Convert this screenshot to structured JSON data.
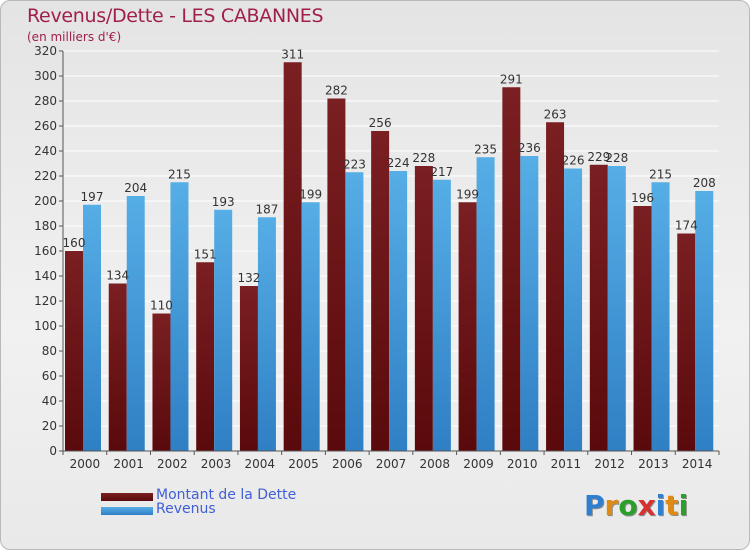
{
  "header": {
    "title": "Revenus/Dette - LES CABANNES",
    "subtitle": "(en milliers d'€)"
  },
  "legend": {
    "debt_label": "Montant de la Dette",
    "revenue_label": "Revenus"
  },
  "logo": {
    "text": "Proxiti",
    "letters": [
      {
        "ch": "P",
        "color": "#2f7fd0"
      },
      {
        "ch": "r",
        "color": "#e08a16"
      },
      {
        "ch": "o",
        "color": "#2a9f2a"
      },
      {
        "ch": "x",
        "color": "#d63030"
      },
      {
        "ch": "i",
        "color": "#2f7fd0"
      },
      {
        "ch": "t",
        "color": "#e08a16"
      },
      {
        "ch": "i",
        "color": "#2a9f2a"
      }
    ]
  },
  "colors": {
    "debt": "#7a1f22",
    "debt_dark": "#5a0a0c",
    "revenue": "#56aee6",
    "revenue_dark": "#2f7fc4",
    "title": "#a0204a",
    "legend_text": "#3f5fd4"
  },
  "chart_data": {
    "type": "bar",
    "title": "Revenus/Dette - LES CABANNES",
    "subtitle": "(en milliers d'€)",
    "categories": [
      "2000",
      "2001",
      "2002",
      "2003",
      "2004",
      "2005",
      "2006",
      "2007",
      "2008",
      "2009",
      "2010",
      "2011",
      "2012",
      "2013",
      "2014"
    ],
    "series": [
      {
        "name": "Montant de la Dette",
        "values": [
          160,
          134,
          110,
          151,
          132,
          311,
          282,
          256,
          228,
          199,
          291,
          263,
          229,
          196,
          174
        ]
      },
      {
        "name": "Revenus",
        "values": [
          197,
          204,
          215,
          193,
          187,
          199,
          223,
          224,
          217,
          235,
          236,
          226,
          228,
          215,
          208
        ]
      }
    ],
    "ylim": [
      0,
      320
    ],
    "yticks": [
      0,
      20,
      40,
      60,
      80,
      100,
      120,
      140,
      160,
      180,
      200,
      220,
      240,
      260,
      280,
      300,
      320
    ],
    "grid": true,
    "legend_position": "bottom-left"
  }
}
